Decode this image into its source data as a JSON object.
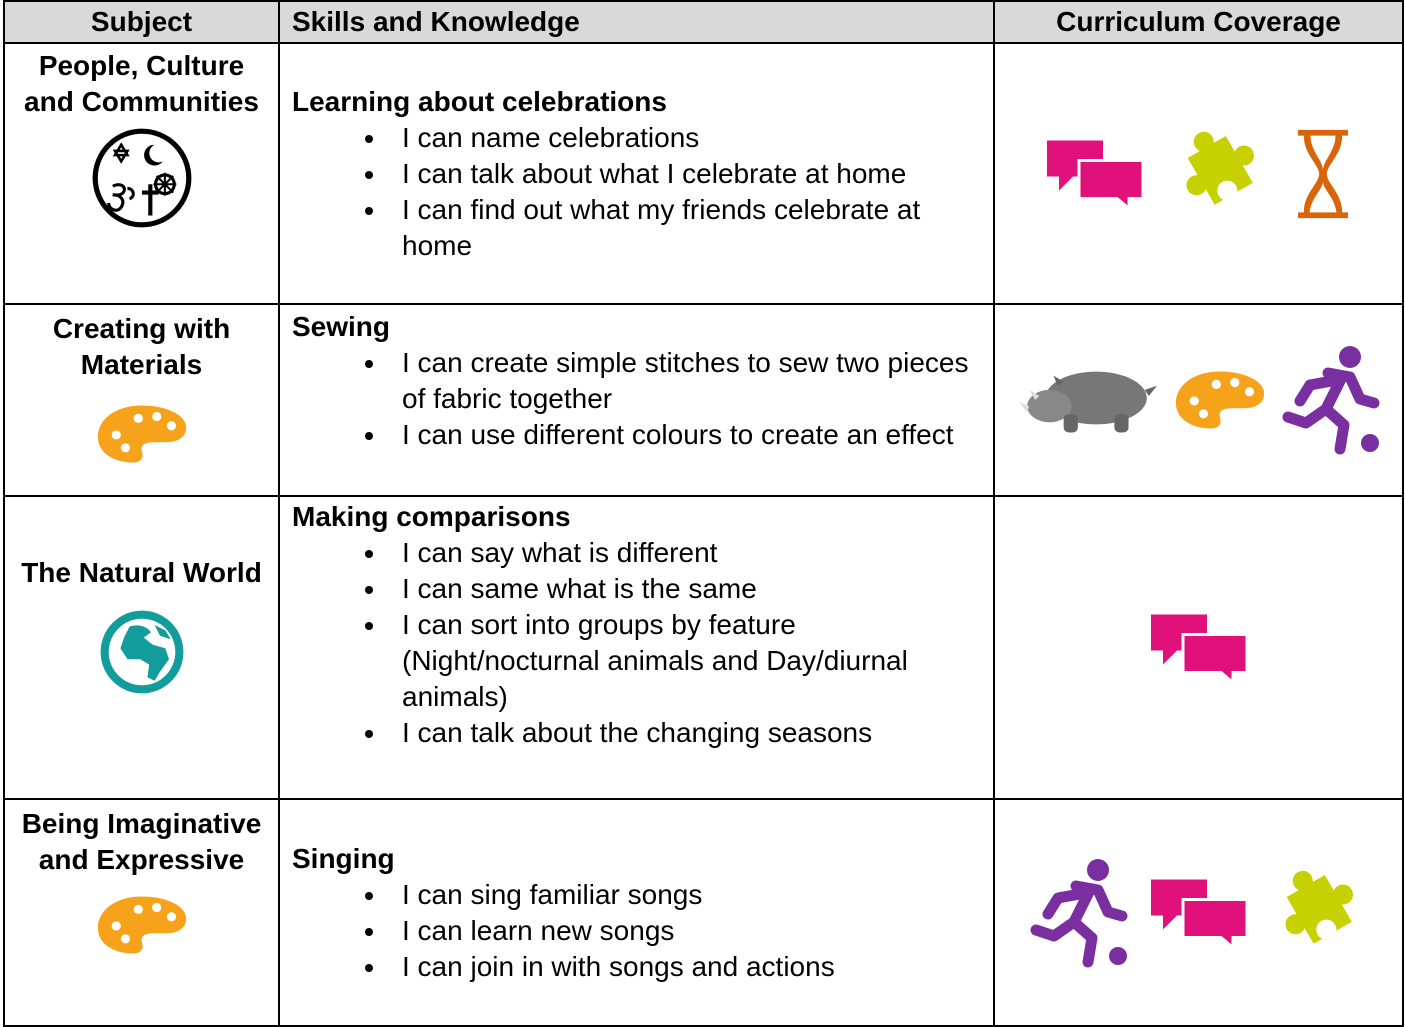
{
  "table": {
    "headers": [
      "Subject",
      "Skills and Knowledge",
      "Curriculum Coverage"
    ],
    "rows": [
      {
        "subject": "People, Culture and Communities",
        "heading": "Learning about celebrations",
        "items": [
          "I can name celebrations",
          "I can talk about what I celebrate at home",
          "I can find out what my friends celebrate at home"
        ]
      },
      {
        "subject": "Creating with Materials",
        "heading": "Sewing",
        "items": [
          "I can create simple stitches to sew two pieces of fabric together",
          "I can use different colours to create an effect"
        ]
      },
      {
        "subject": "The Natural World",
        "heading": "Making comparisons",
        "items": [
          "I can say what is different",
          "I can same what is the same",
          "I can sort into groups by feature (Night/nocturnal animals and Day/diurnal animals)",
          "I can talk about the changing seasons"
        ]
      },
      {
        "subject": "Being Imaginative and Expressive",
        "heading": "Singing",
        "items": [
          "I can sing familiar songs",
          "I can learn new songs",
          "I can join in with songs and actions"
        ]
      }
    ]
  }
}
